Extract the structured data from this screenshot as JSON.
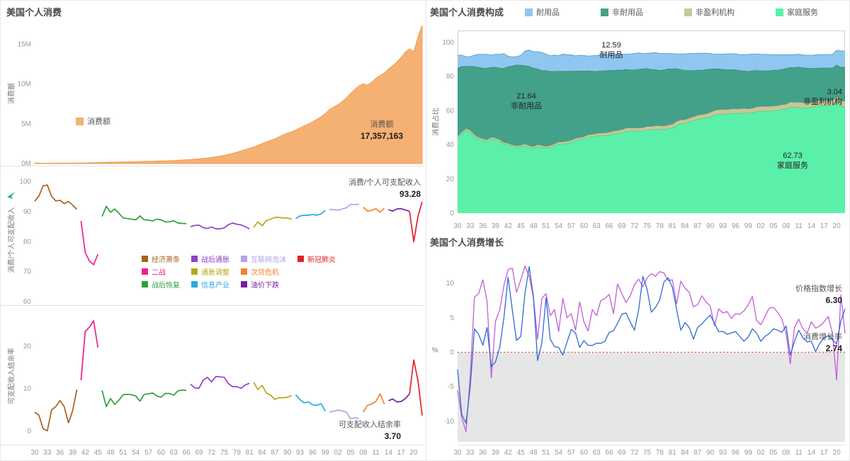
{
  "left": {
    "title": "美国个人消费",
    "consumption": {
      "ylabel": "消费额",
      "legend": "消费额",
      "color": "#f5b171",
      "edge": "#ec9f54",
      "annotation_label": "消费额",
      "annotation_value": "17,357,163",
      "yticks": [
        {
          "value": 0,
          "label": "0M"
        },
        {
          "value": 5000000,
          "label": "5M"
        },
        {
          "value": 10000000,
          "label": "10M"
        },
        {
          "value": 15000000,
          "label": "15M"
        }
      ]
    },
    "ratio": {
      "ylabel": "消费/个人可支配收入",
      "annotation_label": "消费/个人可支配收入",
      "annotation_value": "93.28",
      "yticks": [
        60,
        70,
        80,
        90,
        100
      ]
    },
    "savings": {
      "ylabel": "可支配收入结余率",
      "annotation_label": "可支配收入结余率",
      "annotation_value": "3.70",
      "yticks": [
        0,
        10,
        20
      ]
    },
    "eras": [
      {
        "label": "经济萧条",
        "color": "#a8611c",
        "start": 1930,
        "end": 1940
      },
      {
        "label": "二战",
        "color": "#ef1e8e",
        "start": 1941,
        "end": 1945
      },
      {
        "label": "战后恢复",
        "color": "#2ba33c",
        "start": 1946,
        "end": 1966
      },
      {
        "label": "战后通胀",
        "color": "#8f41c9",
        "start": 1967,
        "end": 1981
      },
      {
        "label": "通胀调整",
        "color": "#b5a816",
        "start": 1982,
        "end": 1991
      },
      {
        "label": "信息产业",
        "color": "#29a8e0",
        "start": 1992,
        "end": 1999
      },
      {
        "label": "互联网泡沫",
        "color": "#b2a4e6",
        "start": 2000,
        "end": 2007
      },
      {
        "label": "次贷危机",
        "color": "#f5812c",
        "start": 2008,
        "end": 2013
      },
      {
        "label": "油价下跌",
        "color": "#7b1fa2",
        "start": 2014,
        "end": 2019
      },
      {
        "label": "新冠肺炎",
        "color": "#e02424",
        "start": 2019,
        "end": 2022
      }
    ]
  },
  "right": {
    "composition": {
      "title": "美国个人消费构成",
      "ylabel": "消费占比",
      "yticks": [
        0,
        20,
        40,
        60,
        80,
        100
      ],
      "legend": [
        {
          "label": "耐用品",
          "color": "#8fc7f0"
        },
        {
          "label": "非耐用品",
          "color": "#43a189"
        },
        {
          "label": "非盈利机构",
          "color": "#c9c697"
        },
        {
          "label": "家庭服务",
          "color": "#5bf0aa"
        }
      ],
      "annotations": [
        {
          "value": "12.59",
          "label": "耐用品"
        },
        {
          "value": "21.64",
          "label": "非耐用品"
        },
        {
          "value": "3.04",
          "label": "非盈利机构"
        },
        {
          "value": "62.73",
          "label": "家庭服务"
        }
      ]
    },
    "growth": {
      "title": "美国个人消费增长",
      "ylabel": "%",
      "yticks": [
        -10,
        -5,
        0,
        5,
        10
      ],
      "zero_line_color": "#e03030",
      "negative_region_color": "#e6e6e6",
      "annotations": [
        {
          "label": "价格指数增长",
          "value": "6.30"
        },
        {
          "label": "消费增长率",
          "value": "2.74"
        }
      ]
    }
  },
  "xticks": [
    "30",
    "33",
    "36",
    "39",
    "42",
    "45",
    "48",
    "51",
    "54",
    "57",
    "60",
    "63",
    "66",
    "69",
    "72",
    "75",
    "78",
    "81",
    "84",
    "87",
    "90",
    "93",
    "96",
    "99",
    "02",
    "05",
    "08",
    "11",
    "14",
    "17",
    "20"
  ],
  "chart_data": [
    {
      "type": "area",
      "title": "美国个人消费",
      "x_start": 1930,
      "x_end": 2022,
      "ylabel": "消费额",
      "ylim": [
        0,
        17500000
      ],
      "series": [
        {
          "name": "消费额",
          "color": "#f5b171",
          "values": [
            70100,
            60700,
            48700,
            45900,
            51500,
            55900,
            62200,
            66800,
            64300,
            67200,
            71300,
            81100,
            89000,
            99900,
            108600,
            120000,
            144300,
            162000,
            175000,
            178300,
            192200,
            208500,
            219500,
            233100,
            240000,
            258800,
            271700,
            286900,
            296200,
            317700,
            331700,
            342100,
            363300,
            382700,
            411500,
            443800,
            480900,
            507800,
            558000,
            605200,
            648500,
            701900,
            770600,
            852400,
            933400,
            1034200,
            1151900,
            1278600,
            1428500,
            1592200,
            1757100,
            1941100,
            2077300,
            2290600,
            2503300,
            2720300,
            2899700,
            3100200,
            3353600,
            3598500,
            3839900,
            3986100,
            4235300,
            4477900,
            4743300,
            4975800,
            5256800,
            5547400,
            5879500,
            6282500,
            6792400,
            7103100,
            7384100,
            7765500,
            8260000,
            8794100,
            9304000,
            9750500,
            10013600,
            9847000,
            10202200,
            10689300,
            11050600,
            11361200,
            11863700,
            12284300,
            12748500,
            13312100,
            13998700,
            14392700,
            14047600,
            15902600,
            17357163
          ]
        }
      ]
    },
    {
      "type": "line",
      "title": "消费/个人可支配收入",
      "x_start": 1930,
      "x_end": 2022,
      "ylim": [
        60,
        100
      ],
      "values": [
        93.5,
        95.2,
        98.6,
        98.9,
        95.1,
        93.6,
        93.8,
        92.7,
        93.4,
        92.2,
        90.8,
        86.9,
        76.4,
        73.5,
        72.3,
        75.8,
        88.4,
        91.8,
        89.8,
        90.9,
        89.5,
        87.9,
        87.7,
        87.5,
        87.3,
        88.6,
        87.3,
        87.2,
        86.9,
        87.5,
        87.3,
        86.6,
        86.6,
        87.0,
        86.2,
        86.1,
        86.0,
        85.0,
        85.4,
        85.5,
        84.7,
        84.4,
        84.9,
        84.3,
        84.3,
        84.6,
        85.7,
        86.2,
        85.8,
        85.6,
        85.0,
        84.3,
        84.8,
        86.6,
        85.3,
        87.0,
        87.5,
        88.1,
        88.1,
        87.9,
        87.9,
        87.5,
        87.7,
        88.6,
        88.8,
        88.8,
        89.1,
        88.8,
        89.3,
        90.4,
        90.7,
        90.7,
        90.5,
        90.9,
        91.3,
        92.5,
        92.3,
        92.6,
        91.5,
        90.2,
        90.4,
        91.0,
        89.8,
        91.2,
        90.7,
        90.2,
        90.9,
        91.0,
        90.6,
        90.1,
        80.0,
        88.5,
        93.28
      ]
    },
    {
      "type": "line",
      "title": "可支配收入结余率",
      "x_start": 1930,
      "x_end": 2022,
      "ylim": [
        0,
        20
      ],
      "values": [
        4.5,
        3.8,
        0.6,
        0.1,
        5.0,
        5.8,
        7.2,
        5.8,
        2.0,
        4.8,
        9.8,
        12.0,
        23.5,
        24.5,
        26.0,
        19.7,
        9.6,
        5.8,
        7.7,
        6.3,
        7.3,
        8.6,
        8.7,
        8.6,
        8.3,
        7.1,
        8.7,
        8.8,
        9.0,
        8.3,
        8.0,
        8.9,
        8.9,
        8.5,
        9.5,
        9.7,
        9.6,
        11.1,
        10.2,
        10.1,
        12.0,
        12.7,
        11.6,
        12.9,
        12.8,
        12.7,
        11.2,
        10.5,
        10.5,
        10.1,
        10.9,
        11.3,
        11.5,
        9.8,
        10.8,
        9.0,
        8.5,
        7.5,
        7.9,
        7.9,
        8.0,
        8.4,
        8.6,
        7.4,
        6.7,
        6.9,
        6.2,
        6.1,
        6.5,
        4.7,
        4.5,
        4.7,
        5.0,
        4.8,
        4.5,
        2.9,
        3.2,
        3.0,
        4.5,
        6.1,
        6.4,
        7.0,
        8.8,
        6.4,
        7.2,
        7.6,
        6.9,
        7.0,
        7.7,
        8.8,
        16.8,
        11.9,
        3.7
      ]
    },
    {
      "type": "area",
      "stacked": true,
      "title": "美国个人消费构成",
      "x_start": 1930,
      "x_end": 2022,
      "ylim": [
        0,
        100
      ],
      "series": [
        {
          "name": "家庭服务",
          "color": "#5bf0aa",
          "edge": "#2fc585",
          "values": [
            44,
            46.5,
            48.5,
            47.5,
            45,
            43.5,
            42.5,
            42,
            43.5,
            43,
            42,
            40.5,
            40,
            39,
            38.5,
            38.8,
            39.5,
            38.5,
            38,
            39,
            38.5,
            38,
            38.5,
            39.5,
            40.5,
            40.5,
            41,
            41.5,
            42.5,
            43,
            43.5,
            44.5,
            44.8,
            45.2,
            45.5,
            45.5,
            45.8,
            46.5,
            46.8,
            47.2,
            48,
            48.2,
            48.2,
            48,
            48.2,
            48.8,
            48.8,
            49.2,
            49.2,
            49,
            49.5,
            50,
            51.5,
            52.5,
            52.5,
            53.5,
            54.2,
            55,
            55.5,
            55.8,
            56.5,
            57.5,
            58,
            58.2,
            58,
            58.5,
            58.5,
            58.5,
            58.8,
            58.5,
            58.8,
            59.5,
            59.8,
            59.8,
            59.8,
            60,
            60.2,
            60.8,
            61,
            62.2,
            62,
            62,
            61.8,
            61.8,
            62,
            62.5,
            63,
            63,
            63,
            63.2,
            65,
            62.5,
            62.7
          ]
        },
        {
          "name": "非盈利机构",
          "color": "#c9c697",
          "edge": "#a5a26e",
          "values": [
            1.0,
            1.0,
            1.1,
            1.1,
            1.0,
            1.0,
            1.0,
            1.0,
            1.0,
            1.0,
            1.0,
            0.9,
            0.9,
            0.9,
            0.9,
            1.0,
            1.0,
            1.0,
            1.0,
            1.1,
            1.1,
            1.1,
            1.1,
            1.1,
            1.2,
            1.2,
            1.2,
            1.2,
            1.3,
            1.3,
            1.3,
            1.4,
            1.4,
            1.4,
            1.5,
            1.5,
            1.5,
            1.6,
            1.6,
            1.7,
            1.8,
            1.8,
            1.8,
            1.8,
            1.9,
            2.0,
            2.0,
            2.0,
            2.0,
            2.0,
            2.1,
            2.1,
            2.2,
            2.2,
            2.2,
            2.2,
            2.3,
            2.3,
            2.3,
            2.4,
            2.5,
            2.6,
            2.6,
            2.6,
            2.6,
            2.6,
            2.6,
            2.6,
            2.6,
            2.6,
            2.6,
            2.7,
            2.7,
            2.7,
            2.7,
            2.7,
            2.7,
            2.7,
            2.8,
            2.9,
            2.9,
            2.9,
            2.9,
            2.9,
            2.9,
            2.9,
            2.9,
            2.9,
            2.9,
            2.9,
            3.1,
            3.0,
            3.0
          ]
        },
        {
          "name": "非耐用品",
          "color": "#43a189",
          "edge": "#2c7c68",
          "values": [
            40,
            38.5,
            36.5,
            37.5,
            40,
            41,
            41.5,
            42,
            41,
            41.5,
            42,
            43.5,
            45,
            46.5,
            47.5,
            47,
            46,
            46.5,
            46,
            44.5,
            44,
            44.5,
            43.5,
            42.5,
            41.5,
            41.5,
            41,
            40.5,
            39.5,
            39,
            38.5,
            37.5,
            37,
            36.5,
            36.5,
            36.5,
            36.5,
            35.5,
            35.5,
            35,
            34.5,
            34,
            34,
            34.5,
            34.5,
            34,
            33.5,
            33,
            32.5,
            33,
            33,
            32.5,
            31,
            29.5,
            29,
            28,
            27,
            26.5,
            26,
            26,
            25.5,
            24.5,
            24,
            23.5,
            23.5,
            23,
            23,
            22.5,
            22,
            22,
            22,
            21.5,
            21,
            21,
            21,
            21.2,
            21,
            20.8,
            21,
            20.3,
            20.5,
            20.8,
            20.5,
            20.3,
            20,
            19.5,
            19.2,
            19.2,
            19.2,
            19,
            18.8,
            20,
            19.8
          ]
        },
        {
          "name": "耐用品",
          "color": "#8fc7f0",
          "edge": "#5fa0d0",
          "values": [
            7.5,
            6.5,
            5.5,
            5.5,
            6.5,
            7.5,
            8,
            8,
            7,
            7.5,
            8,
            8.5,
            6,
            5,
            4.8,
            5.5,
            8.5,
            9.5,
            9.5,
            10,
            10.5,
            9.5,
            9,
            9.5,
            9,
            10,
            9.5,
            9.5,
            8.8,
            9.2,
            9,
            8.5,
            9,
            9.2,
            9.3,
            9.5,
            9.5,
            9.3,
            9.5,
            9.2,
            8.8,
            9.2,
            9.5,
            9.5,
            8.8,
            8.8,
            9.5,
            9.8,
            9.8,
            9.5,
            8.8,
            8.8,
            8.5,
            9,
            9.5,
            9.8,
            10,
            9.8,
            9.8,
            9.5,
            9,
            8.5,
            8.5,
            8.8,
            9.2,
            9.2,
            9.2,
            9.2,
            9.5,
            9.8,
            9.8,
            9.5,
            9.5,
            9.5,
            9.3,
            9,
            8.8,
            8.5,
            8,
            7.3,
            7.5,
            7.3,
            7.5,
            7.5,
            7.5,
            7.8,
            7.8,
            7.8,
            7.8,
            7.8,
            8.5,
            9.5,
            9.3
          ]
        }
      ]
    },
    {
      "type": "line",
      "title": "美国个人消费增长",
      "x_start": 1930,
      "x_end": 2022,
      "ylim": [
        -10,
        10
      ],
      "series": [
        {
          "name": "消费增长率",
          "color": "#c05fd8",
          "values": [
            -5.5,
            -9.5,
            -11.5,
            -3.5,
            8.0,
            8.5,
            10.5,
            7.4,
            -3.7,
            4.5,
            6.1,
            9.7,
            12.0,
            12.2,
            8.7,
            10.5,
            12.5,
            11.0,
            8.0,
            1.9,
            7.8,
            8.5,
            5.3,
            6.2,
            3.0,
            7.8,
            5.0,
            5.6,
            3.2,
            7.3,
            4.4,
            3.1,
            6.2,
            5.3,
            7.5,
            7.8,
            8.4,
            5.6,
            9.9,
            8.5,
            7.2,
            8.2,
            9.8,
            10.6,
            9.5,
            10.8,
            11.4,
            11.0,
            11.7,
            11.5,
            10.4,
            10.5,
            7.0,
            10.3,
            9.3,
            8.7,
            6.6,
            6.9,
            8.2,
            7.3,
            6.7,
            3.8,
            6.3,
            5.7,
            5.9,
            4.9,
            5.6,
            5.5,
            6.0,
            6.9,
            8.1,
            4.6,
            4.0,
            5.2,
            6.4,
            6.5,
            5.8,
            4.8,
            2.7,
            -1.7,
            3.6,
            4.8,
            3.4,
            2.8,
            4.4,
            3.5,
            3.8,
            4.4,
            5.2,
            2.8,
            -4.0,
            8.3,
            2.74
          ]
        },
        {
          "name": "价格指数增长",
          "color": "#3069d2",
          "values": [
            -2.5,
            -9.0,
            -10.3,
            -5.1,
            3.4,
            2.6,
            1.0,
            3.6,
            -2.1,
            -1.4,
            0.7,
            5.0,
            10.9,
            6.1,
            1.7,
            2.3,
            8.5,
            12.4,
            8.1,
            -1.2,
            1.3,
            7.9,
            1.9,
            0.8,
            0.7,
            -0.4,
            1.5,
            3.3,
            2.8,
            0.7,
            1.7,
            1.0,
            1.0,
            1.3,
            1.3,
            1.6,
            2.9,
            3.1,
            4.2,
            5.5,
            5.7,
            4.4,
            3.2,
            6.2,
            11.0,
            9.1,
            5.8,
            6.5,
            7.6,
            10.2,
            10.8,
            9.4,
            6.2,
            3.2,
            4.3,
            3.6,
            1.9,
            3.6,
            4.1,
            4.8,
            5.4,
            4.2,
            3.0,
            3.0,
            2.6,
            2.8,
            3.0,
            2.3,
            1.6,
            2.2,
            3.4,
            2.8,
            1.6,
            2.3,
            2.7,
            3.4,
            3.2,
            2.9,
            3.8,
            -0.4,
            1.6,
            3.2,
            2.1,
            1.5,
            1.6,
            0.1,
            1.3,
            2.1,
            2.4,
            1.8,
            1.2,
            4.5,
            6.3
          ]
        }
      ]
    }
  ]
}
